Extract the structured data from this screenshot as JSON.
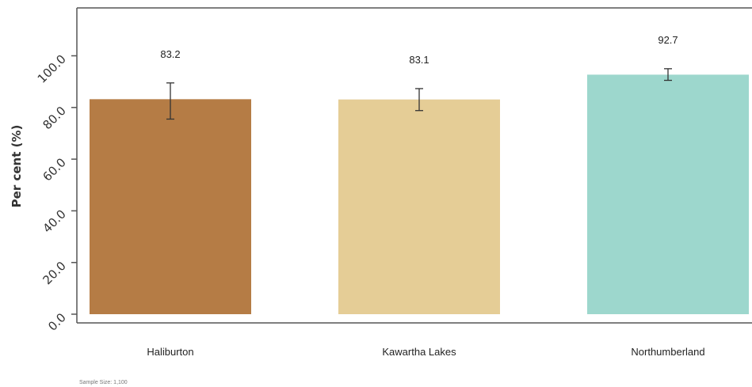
{
  "chart_data": {
    "type": "bar",
    "title": "",
    "xlabel": "",
    "ylabel": "Per cent (%)",
    "categories": [
      "Haliburton",
      "Kawartha Lakes",
      "Northumberland"
    ],
    "values": [
      83.2,
      83.1,
      92.7
    ],
    "data_labels": [
      "83.2",
      "83.1",
      "92.7"
    ],
    "error_bars": [
      {
        "low": 75.5,
        "high": 89.5
      },
      {
        "low": 78.8,
        "high": 87.3
      },
      {
        "low": 90.5,
        "high": 95.0
      }
    ],
    "colors": [
      "#b57c45",
      "#e5cd96",
      "#9dd7cd"
    ],
    "ylim": [
      0,
      100
    ],
    "yticks": [
      0,
      20,
      40,
      60,
      80,
      100
    ],
    "ytick_labels": [
      "0.0",
      "20.0",
      "40.0",
      "60.0",
      "80.0",
      "100.0"
    ],
    "grid": false,
    "legend": "none",
    "note": "Sample Size: 1,100"
  }
}
